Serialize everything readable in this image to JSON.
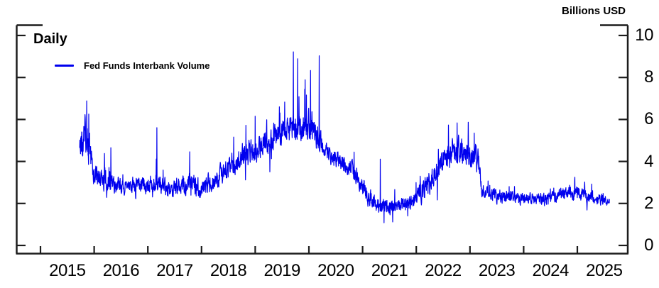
{
  "chart_data": {
    "type": "line",
    "title": "Fed Funds Interbank Volume",
    "unit_label": "Billions USD",
    "frequency_label": "Daily",
    "legend": [
      {
        "label": "Fed Funds Interbank Volume",
        "color": "#0000EE"
      }
    ],
    "x_labels": [
      "2015",
      "2016",
      "2017",
      "2018",
      "2019",
      "2020",
      "2021",
      "2022",
      "2023",
      "2024",
      "2025"
    ],
    "x_tick_years": [
      2015,
      2016,
      2017,
      2018,
      2019,
      2020,
      2021,
      2022,
      2023,
      2024,
      2025
    ],
    "ylim": [
      0,
      10
    ],
    "yticks": [
      0,
      2,
      4,
      6,
      8,
      10
    ],
    "grid": false,
    "legend_position": "top-left",
    "x_start": 2015.73,
    "x_end": 2025.6,
    "anchors": [
      [
        2015.73,
        5.0,
        0.75
      ],
      [
        2015.85,
        5.2,
        0.9
      ],
      [
        2016.0,
        3.4,
        0.45
      ],
      [
        2016.2,
        3.1,
        0.5
      ],
      [
        2016.4,
        2.9,
        0.4
      ],
      [
        2016.6,
        2.8,
        0.35
      ],
      [
        2016.8,
        2.9,
        0.35
      ],
      [
        2017.0,
        2.9,
        0.4
      ],
      [
        2017.2,
        3.0,
        0.45
      ],
      [
        2017.4,
        2.6,
        0.35
      ],
      [
        2017.6,
        2.8,
        0.4
      ],
      [
        2017.8,
        3.0,
        0.5
      ],
      [
        2018.0,
        2.7,
        0.4
      ],
      [
        2018.2,
        3.0,
        0.45
      ],
      [
        2018.4,
        3.5,
        0.5
      ],
      [
        2018.6,
        3.9,
        0.55
      ],
      [
        2018.8,
        4.3,
        0.55
      ],
      [
        2019.0,
        4.6,
        0.55
      ],
      [
        2019.2,
        5.0,
        0.6
      ],
      [
        2019.4,
        5.3,
        0.65
      ],
      [
        2019.6,
        5.5,
        0.6
      ],
      [
        2019.8,
        5.5,
        0.7
      ],
      [
        2020.0,
        5.6,
        0.7
      ],
      [
        2020.15,
        5.3,
        0.6
      ],
      [
        2020.25,
        4.7,
        0.45
      ],
      [
        2020.4,
        4.2,
        0.4
      ],
      [
        2020.6,
        4.0,
        0.4
      ],
      [
        2020.8,
        3.7,
        0.4
      ],
      [
        2021.0,
        2.8,
        0.45
      ],
      [
        2021.15,
        2.2,
        0.4
      ],
      [
        2021.3,
        1.9,
        0.35
      ],
      [
        2021.5,
        1.8,
        0.35
      ],
      [
        2021.7,
        1.9,
        0.35
      ],
      [
        2021.9,
        2.1,
        0.35
      ],
      [
        2022.1,
        2.5,
        0.45
      ],
      [
        2022.3,
        3.2,
        0.55
      ],
      [
        2022.5,
        4.1,
        0.6
      ],
      [
        2022.7,
        4.5,
        0.6
      ],
      [
        2022.9,
        4.4,
        0.6
      ],
      [
        2023.05,
        4.3,
        0.55
      ],
      [
        2023.16,
        4.2,
        0.4
      ],
      [
        2023.22,
        2.6,
        0.3
      ],
      [
        2023.4,
        2.4,
        0.28
      ],
      [
        2023.6,
        2.3,
        0.28
      ],
      [
        2023.8,
        2.3,
        0.26
      ],
      [
        2024.0,
        2.2,
        0.26
      ],
      [
        2024.2,
        2.3,
        0.26
      ],
      [
        2024.4,
        2.2,
        0.26
      ],
      [
        2024.6,
        2.3,
        0.28
      ],
      [
        2024.8,
        2.5,
        0.3
      ],
      [
        2025.0,
        2.55,
        0.3
      ],
      [
        2025.2,
        2.3,
        0.28
      ],
      [
        2025.45,
        2.2,
        0.25
      ],
      [
        2025.6,
        2.1,
        0.25
      ]
    ],
    "spikes": [
      [
        2015.86,
        6.9
      ],
      [
        2015.9,
        6.3
      ],
      [
        2016.19,
        4.4
      ],
      [
        2016.31,
        4.7
      ],
      [
        2017.17,
        5.6
      ],
      [
        2017.78,
        4.5
      ],
      [
        2019.0,
        6.2
      ],
      [
        2019.45,
        6.6
      ],
      [
        2019.55,
        6.8
      ],
      [
        2019.71,
        9.2
      ],
      [
        2019.79,
        8.9
      ],
      [
        2019.93,
        7.9
      ],
      [
        2020.03,
        8.4
      ],
      [
        2020.19,
        9.1
      ],
      [
        2020.84,
        4.5
      ],
      [
        2021.33,
        4.1
      ],
      [
        2021.4,
        1.1
      ],
      [
        2021.56,
        1.15
      ],
      [
        2022.6,
        5.8
      ],
      [
        2022.76,
        5.9
      ],
      [
        2022.97,
        5.8
      ],
      [
        2023.08,
        5.3
      ],
      [
        2024.95,
        3.0
      ]
    ],
    "colors": {
      "line": "#0000EE",
      "axis": "#1c1c1c",
      "text": "#000000",
      "background": "#ffffff"
    }
  }
}
